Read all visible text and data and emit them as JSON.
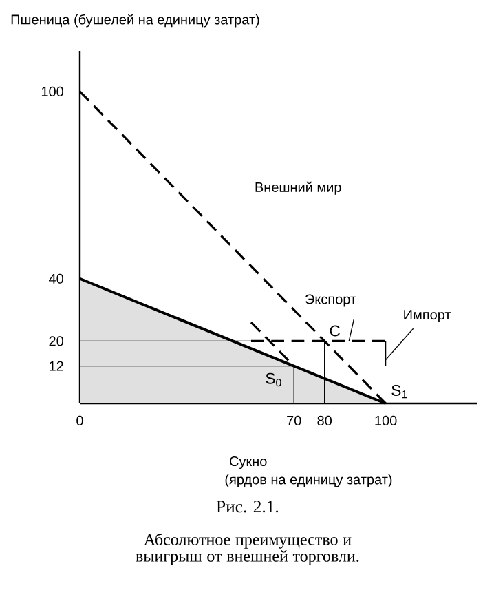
{
  "chart_data": {
    "type": "line",
    "title": "Рис. 2.1.",
    "subtitle": "Абсолютное преимущество и выигрыш от внешней торговли.",
    "xlabel": "Сукно",
    "ylabel": "Пшеница (бушелей на единицу затрат)",
    "xlim": [
      0,
      130
    ],
    "ylim": [
      0,
      113
    ],
    "xticks": [
      0,
      70,
      80,
      100
    ],
    "yticks": [
      12,
      20,
      40,
      100
    ],
    "marker": "none",
    "series": [
      {
        "type": "area",
        "color": "#000000",
        "line_style": "solid",
        "x": [
          0,
          100
        ],
        "values": [
          40,
          0
        ]
      },
      {
        "type": "line",
        "color": "#000000",
        "line_style": "dashed",
        "x": [
          0,
          100
        ],
        "values": [
          100,
          0
        ]
      },
      {
        "type": "line",
        "color": "#000000",
        "line_style": "dashed",
        "x": [
          56,
          70
        ],
        "values": [
          26,
          12
        ]
      },
      {
        "type": "line",
        "color": "#000000",
        "line_style": "solid",
        "x": [
          0,
          56
        ],
        "values": [
          20,
          20
        ]
      },
      {
        "type": "line",
        "color": "#000000",
        "line_style": "dashed",
        "x": [
          56,
          100
        ],
        "values": [
          20,
          20
        ]
      },
      {
        "type": "line",
        "color": "#000000",
        "line_style": "solid",
        "x": [
          100,
          100
        ],
        "values": [
          20,
          12
        ]
      },
      {
        "type": "line",
        "color": "#000000",
        "line_style": "solid",
        "x": [
          0,
          70
        ],
        "values": [
          12,
          12
        ]
      },
      {
        "type": "line",
        "color": "#000000",
        "line_style": "solid",
        "x": [
          70,
          70
        ],
        "values": [
          0,
          12
        ]
      },
      {
        "type": "line",
        "color": "#000000",
        "line_style": "solid",
        "x": [
          80,
          80
        ],
        "values": [
          0,
          20
        ]
      }
    ],
    "annotations": [
      "Внешний мир",
      {
        "text": "Экспорт",
        "x": 88,
        "y": 20
      },
      {
        "text": "Импорт",
        "x": 100,
        "y": 14
      },
      {
        "text": "C",
        "x": 80,
        "y": 20
      },
      {
        "text": "S$_{0}$",
        "x": 70,
        "y": 12
      },
      {
        "text": "S$_{1}$",
        "x": 100,
        "y": 0
      },
      "(ярдов на единицу затрат)"
    ]
  }
}
